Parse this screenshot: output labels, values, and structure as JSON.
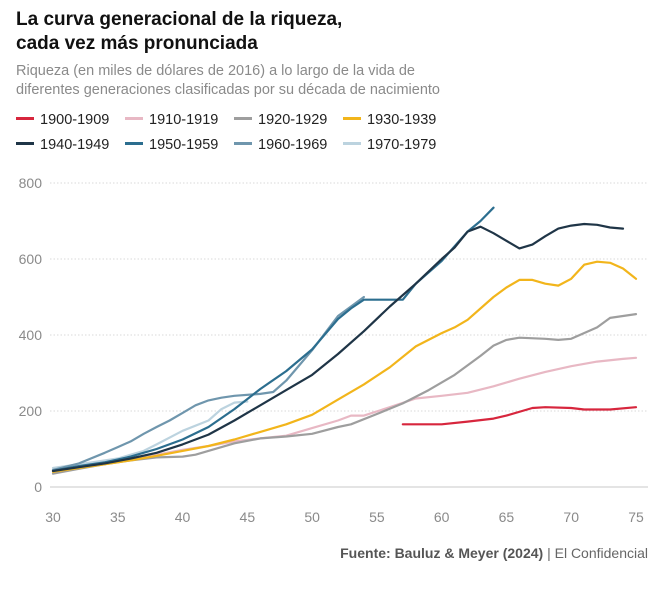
{
  "header": {
    "title_line1": "La curva generacional de la riqueza,",
    "title_line2": "cada vez más pronunciada",
    "subtitle_line1": "Riqueza (en miles de dólares de 2016) a lo largo de la vida de",
    "subtitle_line2": "diferentes generaciones clasificadas por su década de nacimiento"
  },
  "footer": {
    "source_label": "Fuente: Bauluz & Meyer (2024)",
    "separator": "|",
    "publisher": "El Confidencial"
  },
  "chart_data": {
    "type": "line",
    "xlim": [
      30,
      75
    ],
    "ylim": [
      0,
      800
    ],
    "x_ticks": [
      "30",
      "35",
      "40",
      "45",
      "50",
      "55",
      "60",
      "65",
      "70",
      "75"
    ],
    "y_ticks": [
      "0",
      "200",
      "400",
      "600",
      "800"
    ],
    "grid": "horizontal dotted",
    "legend_position": "top",
    "series": [
      {
        "name": "1900-1909",
        "color": "#d7263d",
        "points": [
          [
            57,
            165
          ],
          [
            60,
            165
          ],
          [
            62,
            172
          ],
          [
            64,
            180
          ],
          [
            65,
            188
          ],
          [
            67,
            208
          ],
          [
            68,
            210
          ],
          [
            70,
            208
          ],
          [
            71,
            204
          ],
          [
            73,
            204
          ],
          [
            75,
            210
          ]
        ]
      },
      {
        "name": "1910-1919",
        "color": "#e8b8c4",
        "points": [
          [
            30,
            40
          ],
          [
            32,
            50
          ],
          [
            34,
            60
          ],
          [
            36,
            72
          ],
          [
            38,
            85
          ],
          [
            40,
            98
          ],
          [
            42,
            108
          ],
          [
            44,
            120
          ],
          [
            46,
            128
          ],
          [
            48,
            135
          ],
          [
            50,
            155
          ],
          [
            52,
            175
          ],
          [
            53,
            188
          ],
          [
            54,
            188
          ],
          [
            56,
            210
          ],
          [
            58,
            233
          ],
          [
            60,
            240
          ],
          [
            62,
            248
          ],
          [
            64,
            265
          ],
          [
            66,
            285
          ],
          [
            68,
            303
          ],
          [
            70,
            318
          ],
          [
            72,
            330
          ],
          [
            74,
            337
          ],
          [
            75,
            340
          ]
        ]
      },
      {
        "name": "1920-1929",
        "color": "#9e9e9e",
        "points": [
          [
            30,
            35
          ],
          [
            32,
            48
          ],
          [
            34,
            60
          ],
          [
            36,
            70
          ],
          [
            38,
            78
          ],
          [
            40,
            80
          ],
          [
            41,
            85
          ],
          [
            44,
            115
          ],
          [
            46,
            128
          ],
          [
            48,
            133
          ],
          [
            50,
            140
          ],
          [
            52,
            158
          ],
          [
            53,
            165
          ],
          [
            55,
            192
          ],
          [
            57,
            220
          ],
          [
            59,
            255
          ],
          [
            61,
            295
          ],
          [
            63,
            345
          ],
          [
            64,
            372
          ],
          [
            65,
            387
          ],
          [
            66,
            393
          ],
          [
            68,
            390
          ],
          [
            69,
            387
          ],
          [
            70,
            390
          ],
          [
            72,
            420
          ],
          [
            73,
            445
          ],
          [
            75,
            455
          ]
        ]
      },
      {
        "name": "1930-1939",
        "color": "#f2b51b",
        "points": [
          [
            30,
            40
          ],
          [
            33,
            55
          ],
          [
            36,
            70
          ],
          [
            38,
            82
          ],
          [
            40,
            95
          ],
          [
            42,
            108
          ],
          [
            44,
            125
          ],
          [
            46,
            145
          ],
          [
            48,
            165
          ],
          [
            50,
            190
          ],
          [
            52,
            230
          ],
          [
            54,
            270
          ],
          [
            56,
            315
          ],
          [
            58,
            370
          ],
          [
            60,
            405
          ],
          [
            61,
            420
          ],
          [
            62,
            440
          ],
          [
            64,
            500
          ],
          [
            65,
            525
          ],
          [
            66,
            545
          ],
          [
            67,
            545
          ],
          [
            68,
            535
          ],
          [
            69,
            530
          ],
          [
            70,
            548
          ],
          [
            71,
            585
          ],
          [
            72,
            593
          ],
          [
            73,
            590
          ],
          [
            74,
            575
          ],
          [
            75,
            548
          ]
        ]
      },
      {
        "name": "1940-1949",
        "color": "#1f3547",
        "points": [
          [
            30,
            42
          ],
          [
            32,
            52
          ],
          [
            34,
            62
          ],
          [
            36,
            75
          ],
          [
            38,
            90
          ],
          [
            40,
            112
          ],
          [
            42,
            138
          ],
          [
            44,
            175
          ],
          [
            46,
            215
          ],
          [
            48,
            255
          ],
          [
            50,
            295
          ],
          [
            52,
            350
          ],
          [
            54,
            410
          ],
          [
            56,
            475
          ],
          [
            58,
            535
          ],
          [
            60,
            600
          ],
          [
            61,
            630
          ],
          [
            62,
            672
          ],
          [
            63,
            685
          ],
          [
            64,
            668
          ],
          [
            65,
            648
          ],
          [
            66,
            628
          ],
          [
            67,
            638
          ],
          [
            68,
            660
          ],
          [
            69,
            680
          ],
          [
            70,
            688
          ],
          [
            71,
            692
          ],
          [
            72,
            690
          ],
          [
            73,
            683
          ],
          [
            74,
            680
          ]
        ]
      },
      {
        "name": "1950-1959",
        "color": "#2c6e8f",
        "points": [
          [
            30,
            43
          ],
          [
            32,
            55
          ],
          [
            34,
            65
          ],
          [
            36,
            80
          ],
          [
            38,
            100
          ],
          [
            40,
            125
          ],
          [
            42,
            158
          ],
          [
            44,
            205
          ],
          [
            46,
            258
          ],
          [
            48,
            305
          ],
          [
            50,
            362
          ],
          [
            51,
            402
          ],
          [
            52,
            442
          ],
          [
            53,
            470
          ],
          [
            54,
            493
          ],
          [
            56,
            493
          ],
          [
            57,
            493
          ],
          [
            58,
            535
          ],
          [
            60,
            595
          ],
          [
            62,
            672
          ],
          [
            63,
            700
          ],
          [
            64,
            735
          ]
        ]
      },
      {
        "name": "1960-1969",
        "color": "#6f96ad",
        "points": [
          [
            30,
            45
          ],
          [
            32,
            62
          ],
          [
            34,
            90
          ],
          [
            35,
            105
          ],
          [
            36,
            120
          ],
          [
            37,
            140
          ],
          [
            38,
            158
          ],
          [
            39,
            175
          ],
          [
            40,
            195
          ],
          [
            41,
            215
          ],
          [
            42,
            228
          ],
          [
            43,
            235
          ],
          [
            44,
            240
          ],
          [
            46,
            245
          ],
          [
            47,
            250
          ],
          [
            48,
            280
          ],
          [
            49,
            320
          ],
          [
            50,
            360
          ],
          [
            51,
            405
          ],
          [
            52,
            450
          ],
          [
            53,
            475
          ],
          [
            54,
            500
          ]
        ]
      },
      {
        "name": "1970-1979",
        "color": "#bcd3df",
        "points": [
          [
            30,
            50
          ],
          [
            33,
            65
          ],
          [
            35,
            75
          ],
          [
            37,
            95
          ],
          [
            38,
            112
          ],
          [
            40,
            148
          ],
          [
            42,
            175
          ],
          [
            43,
            205
          ],
          [
            44,
            222
          ],
          [
            45,
            225
          ]
        ]
      }
    ]
  }
}
